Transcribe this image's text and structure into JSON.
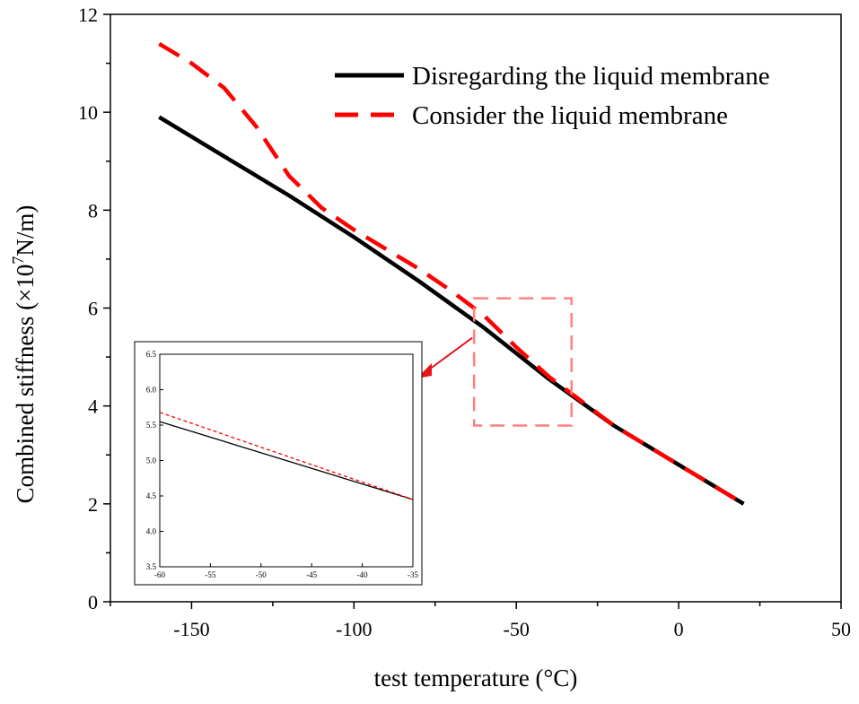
{
  "chart_data": [
    {
      "type": "line",
      "xlabel": "test temperature (°C)",
      "ylabel": {
        "prefix": "Combined stiffness (×10",
        "exponent": "7",
        "suffix": "N/m)"
      },
      "xlim": [
        -175,
        50
      ],
      "ylim": [
        0,
        12
      ],
      "x_ticks": [
        -150,
        -100,
        -50,
        0,
        50
      ],
      "y_ticks": [
        0,
        2,
        4,
        6,
        8,
        10,
        12
      ],
      "grid": false,
      "legend_position": "top-right",
      "series": [
        {
          "name": "Disregarding the liquid membrane",
          "color": "#000000",
          "style": "solid",
          "x": [
            -160,
            -140,
            -120,
            -100,
            -80,
            -60,
            -40,
            -20,
            0,
            20
          ],
          "y": [
            9.9,
            9.1,
            8.3,
            7.45,
            6.55,
            5.6,
            4.55,
            3.6,
            2.8,
            2.0
          ]
        },
        {
          "name": "Consider the liquid membrane",
          "color": "#ff0000",
          "style": "dashed",
          "x": [
            -160,
            -150,
            -140,
            -130,
            -120,
            -110,
            -100,
            -90,
            -80,
            -70,
            -60,
            -50,
            -40,
            -20,
            0,
            20
          ],
          "y": [
            11.4,
            11.0,
            10.5,
            9.7,
            8.7,
            8.05,
            7.6,
            7.2,
            6.8,
            6.35,
            5.85,
            5.2,
            4.6,
            3.6,
            2.8,
            2.0
          ]
        }
      ],
      "highlight_box": {
        "x_range": [
          -63,
          -33
        ],
        "y_range": [
          3.6,
          6.2
        ],
        "color": "#ff8080"
      }
    },
    {
      "type": "line",
      "role": "inset",
      "xlim": [
        -60,
        -35
      ],
      "ylim": [
        3.5,
        6.5
      ],
      "x_ticks": [
        -60,
        -55,
        -50,
        -45,
        -40,
        -35
      ],
      "y_ticks": [
        "3.5",
        "4.0",
        "4.5",
        "5.0",
        "5.5",
        "6.0",
        "6.5"
      ],
      "series": [
        {
          "color": "#000000",
          "style": "solid",
          "x": [
            -60,
            -35
          ],
          "y": [
            5.55,
            4.45
          ]
        },
        {
          "color": "#ff0000",
          "style": "dotted",
          "x": [
            -60,
            -35
          ],
          "y": [
            5.68,
            4.45
          ]
        }
      ]
    }
  ]
}
